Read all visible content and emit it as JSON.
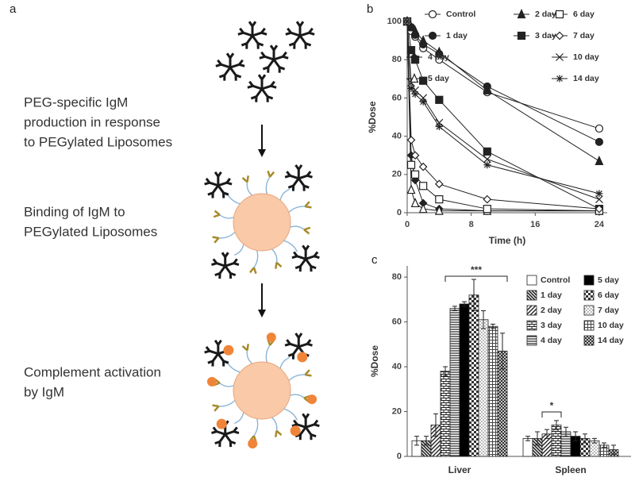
{
  "panel_a": {
    "label": "a",
    "steps": [
      {
        "lines": [
          "PEG-specific IgM",
          "production in response",
          "to PEGylated Liposomes"
        ]
      },
      {
        "lines": [
          "Binding of IgM to",
          "PEGylated Liposomes"
        ]
      },
      {
        "lines": [
          "Complement activation",
          "by IgM"
        ]
      }
    ]
  },
  "chart_data": [
    {
      "type": "line",
      "panel_label": "b",
      "x_label": "Time (h)",
      "y_label": "%Dose",
      "x": [
        0,
        0.5,
        1,
        2,
        4,
        10,
        24
      ],
      "xlim": [
        0,
        25
      ],
      "xticks": [
        0,
        8,
        16,
        24
      ],
      "ylim": [
        0,
        100
      ],
      "yticks": [
        0,
        20,
        40,
        60,
        80,
        100
      ],
      "series": [
        {
          "name": "Control",
          "color": "#222222",
          "marker": "circle-open",
          "values": [
            100,
            95,
            92,
            86,
            80,
            63,
            44
          ]
        },
        {
          "name": "1 day",
          "color": "#222222",
          "marker": "circle-filled",
          "values": [
            100,
            97,
            93,
            88,
            83,
            66,
            37
          ]
        },
        {
          "name": "2 day",
          "color": "#222222",
          "marker": "triangle-filled",
          "values": [
            100,
            97,
            95,
            90,
            84,
            64,
            27
          ]
        },
        {
          "name": "3 day",
          "color": "#222222",
          "marker": "square-filled",
          "values": [
            100,
            85,
            80,
            69,
            59,
            32,
            2
          ]
        },
        {
          "name": "4 day",
          "color": "#222222",
          "marker": "diamond-filled",
          "values": [
            100,
            30,
            17,
            5,
            2,
            1,
            1
          ]
        },
        {
          "name": "5 day",
          "color": "#222222",
          "marker": "triangle-open",
          "values": [
            100,
            12,
            5,
            2,
            1,
            1,
            1
          ]
        },
        {
          "name": "6 day",
          "color": "#222222",
          "marker": "square-open",
          "values": [
            100,
            25,
            20,
            14,
            7,
            2,
            1
          ]
        },
        {
          "name": "7 day",
          "color": "#222222",
          "marker": "diamond-open",
          "values": [
            100,
            38,
            30,
            24,
            15,
            7,
            2
          ]
        },
        {
          "name": "10 day",
          "color": "#222222",
          "marker": "x",
          "values": [
            100,
            68,
            64,
            60,
            47,
            28,
            7
          ]
        },
        {
          "name": "14 day",
          "color": "#222222",
          "marker": "star",
          "values": [
            100,
            65,
            62,
            58,
            45,
            25,
            10
          ]
        }
      ]
    },
    {
      "type": "bar",
      "panel_label": "c",
      "y_label": "%Dose",
      "categories": [
        "Liver",
        "Spleen"
      ],
      "ylim": [
        0,
        85
      ],
      "yticks": [
        0,
        20,
        40,
        60,
        80
      ],
      "series": [
        {
          "name": "Control",
          "color": "#ffffff",
          "pattern": "none",
          "values": [
            7,
            8
          ],
          "errors": [
            2,
            1
          ]
        },
        {
          "name": "1 day",
          "color": "#222222",
          "pattern": "diag-back",
          "values": [
            7,
            8
          ],
          "errors": [
            2,
            3
          ]
        },
        {
          "name": "2 day",
          "color": "#222222",
          "pattern": "diag-fwd",
          "values": [
            14,
            10
          ],
          "errors": [
            5,
            2
          ]
        },
        {
          "name": "3 day",
          "color": "#222222",
          "pattern": "brick",
          "values": [
            38,
            14
          ],
          "errors": [
            2,
            2
          ]
        },
        {
          "name": "4 day",
          "color": "#222222",
          "pattern": "hlines",
          "values": [
            66,
            11
          ],
          "errors": [
            1,
            2
          ]
        },
        {
          "name": "5 day",
          "color": "#000000",
          "pattern": "solid",
          "values": [
            68,
            9
          ],
          "errors": [
            1,
            2
          ]
        },
        {
          "name": "6 day",
          "color": "#222222",
          "pattern": "checker",
          "values": [
            72,
            8
          ],
          "errors": [
            7,
            2
          ]
        },
        {
          "name": "7 day",
          "color": "#222222",
          "pattern": "dots",
          "values": [
            61,
            7
          ],
          "errors": [
            4,
            1
          ]
        },
        {
          "name": "10 day",
          "color": "#222222",
          "pattern": "grid",
          "values": [
            58,
            5
          ],
          "errors": [
            1,
            1
          ]
        },
        {
          "name": "14 day",
          "color": "#222222",
          "pattern": "cross",
          "values": [
            47,
            3
          ],
          "errors": [
            8,
            2
          ]
        }
      ],
      "annotations": [
        {
          "text": "***"
        },
        {
          "text": "*"
        }
      ]
    }
  ]
}
